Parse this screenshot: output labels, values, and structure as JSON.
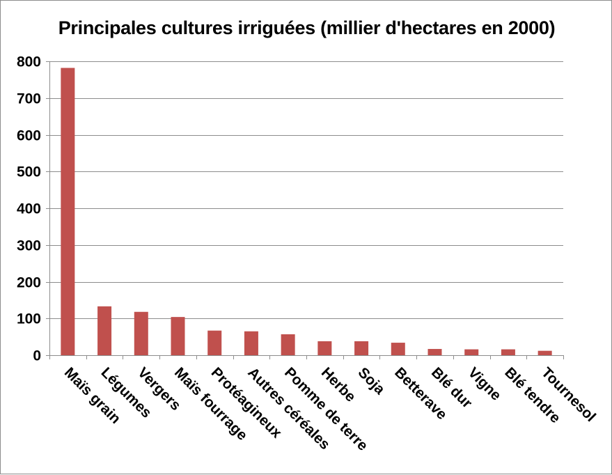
{
  "chart_data": {
    "type": "bar",
    "title": "Principales cultures irriguées (millier d'hectares en 2000)",
    "xlabel": "",
    "ylabel": "",
    "ylim": [
      0,
      800
    ],
    "yticks": [
      0,
      100,
      200,
      300,
      400,
      500,
      600,
      700,
      800
    ],
    "grid": true,
    "legend": "none",
    "bar_color": "#c0504d",
    "grid_color": "#8c8c8c",
    "categories": [
      "Maïs grain",
      "Légumes",
      "Vergers",
      "Maïs fourrage",
      "Protéagineux",
      "Autres céréales",
      "Pomme de terre",
      "Herbe",
      "Soja",
      "Betterave",
      "Blé dur",
      "Vigne",
      "Blé tendre",
      "Tournesol"
    ],
    "values": [
      782,
      133,
      118,
      104,
      67,
      65,
      57,
      38,
      38,
      34,
      17,
      16,
      16,
      12
    ]
  }
}
